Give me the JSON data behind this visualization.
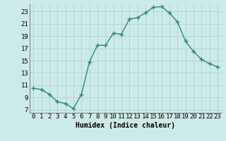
{
  "x": [
    0,
    1,
    2,
    3,
    4,
    5,
    6,
    7,
    8,
    9,
    10,
    11,
    12,
    13,
    14,
    15,
    16,
    17,
    18,
    19,
    20,
    21,
    22,
    23
  ],
  "y": [
    10.5,
    10.3,
    9.5,
    8.3,
    8.0,
    7.2,
    9.5,
    14.8,
    17.5,
    17.5,
    19.5,
    19.3,
    21.8,
    22.0,
    22.8,
    23.7,
    23.8,
    22.8,
    21.3,
    18.2,
    16.5,
    15.2,
    14.5,
    14.0
  ],
  "line_color": "#2e8b6e",
  "bg_color": "#cceae8",
  "grid_color": "#b0d4d0",
  "xlabel": "Humidex (Indice chaleur)",
  "xlim": [
    -0.5,
    23.5
  ],
  "ylim": [
    6.5,
    24.2
  ],
  "yticks": [
    7,
    9,
    11,
    13,
    15,
    17,
    19,
    21,
    23
  ],
  "xticks": [
    0,
    1,
    2,
    3,
    4,
    5,
    6,
    7,
    8,
    9,
    10,
    11,
    12,
    13,
    14,
    15,
    16,
    17,
    18,
    19,
    20,
    21,
    22,
    23
  ],
  "marker": "+",
  "markersize": 4,
  "linewidth": 1.0,
  "xlabel_fontsize": 7,
  "tick_fontsize": 6.5,
  "markeredgewidth": 1.0
}
